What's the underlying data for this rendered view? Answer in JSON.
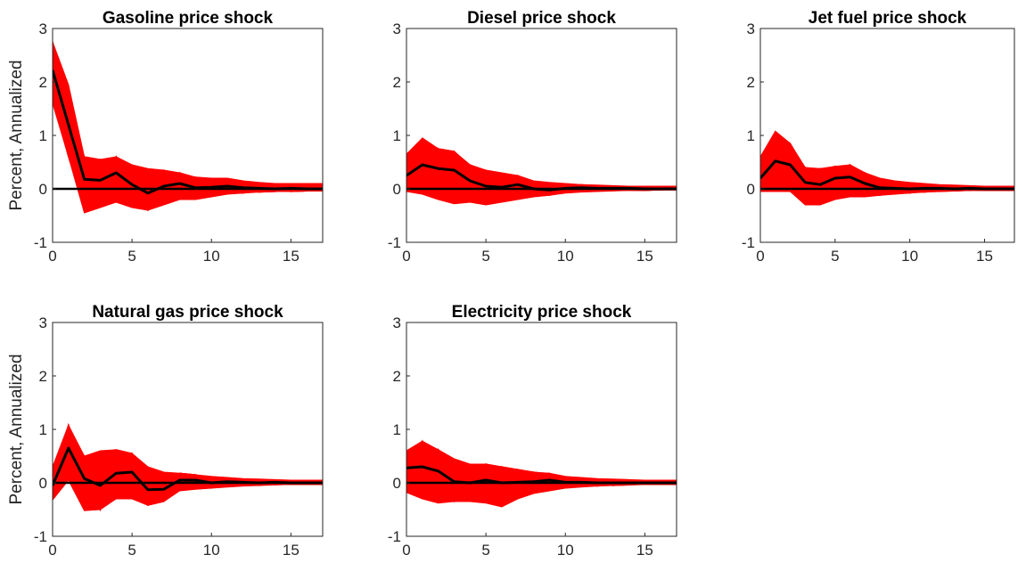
{
  "figure": {
    "ylabel": "Percent, Annualized",
    "colors": {
      "band": "#ff0000",
      "median": "#000000",
      "zero_line": "#000000",
      "axes": "#262626"
    }
  },
  "chart_data": [
    {
      "type": "line",
      "title": "Gasoline price shock",
      "ylabel": "Percent, Annualized",
      "xlim": [
        0,
        17
      ],
      "ylim": [
        -1,
        3
      ],
      "xticks": [
        0,
        5,
        10,
        15
      ],
      "yticks": [
        -1,
        0,
        1,
        2,
        3
      ],
      "grid": false,
      "x": [
        0,
        1,
        2,
        3,
        4,
        5,
        6,
        7,
        8,
        9,
        10,
        11,
        12,
        13,
        14,
        15,
        16,
        17
      ],
      "series": [
        {
          "role": "median",
          "values": [
            2.22,
            1.2,
            0.18,
            0.16,
            0.3,
            0.08,
            -0.08,
            0.05,
            0.1,
            0.02,
            0.03,
            0.05,
            0.02,
            0.01,
            0.0,
            0.01,
            0.0,
            0.0
          ]
        },
        {
          "role": "band_upper",
          "values": [
            2.75,
            1.95,
            0.6,
            0.55,
            0.6,
            0.45,
            0.38,
            0.35,
            0.3,
            0.22,
            0.2,
            0.2,
            0.15,
            0.12,
            0.1,
            0.1,
            0.1,
            0.1
          ]
        },
        {
          "role": "band_lower",
          "values": [
            1.6,
            0.6,
            -0.45,
            -0.35,
            -0.25,
            -0.35,
            -0.4,
            -0.3,
            -0.2,
            -0.2,
            -0.15,
            -0.1,
            -0.08,
            -0.06,
            -0.05,
            -0.05,
            -0.04,
            -0.04
          ]
        }
      ]
    },
    {
      "type": "line",
      "title": "Diesel price shock",
      "xlim": [
        0,
        17
      ],
      "ylim": [
        -1,
        3
      ],
      "xticks": [
        0,
        5,
        10,
        15
      ],
      "yticks": [
        -1,
        0,
        1,
        2,
        3
      ],
      "grid": false,
      "x": [
        0,
        1,
        2,
        3,
        4,
        5,
        6,
        7,
        8,
        9,
        10,
        11,
        12,
        13,
        14,
        15,
        16,
        17
      ],
      "series": [
        {
          "role": "median",
          "values": [
            0.25,
            0.45,
            0.38,
            0.35,
            0.15,
            0.05,
            0.03,
            0.08,
            0.0,
            -0.02,
            0.01,
            0.02,
            0.01,
            0.01,
            0.01,
            0.0,
            0.0,
            0.0
          ]
        },
        {
          "role": "band_upper",
          "values": [
            0.65,
            0.95,
            0.75,
            0.7,
            0.45,
            0.35,
            0.3,
            0.25,
            0.15,
            0.12,
            0.1,
            0.08,
            0.07,
            0.06,
            0.05,
            0.05,
            0.05,
            0.05
          ]
        },
        {
          "role": "band_lower",
          "values": [
            -0.05,
            -0.1,
            -0.2,
            -0.28,
            -0.25,
            -0.3,
            -0.25,
            -0.2,
            -0.15,
            -0.12,
            -0.08,
            -0.06,
            -0.05,
            -0.04,
            -0.03,
            -0.03,
            -0.02,
            -0.02
          ]
        }
      ]
    },
    {
      "type": "line",
      "title": "Jet fuel price shock",
      "xlim": [
        0,
        17
      ],
      "ylim": [
        -1,
        3
      ],
      "xticks": [
        0,
        5,
        10,
        15
      ],
      "yticks": [
        -1,
        0,
        1,
        2,
        3
      ],
      "grid": false,
      "x": [
        0,
        1,
        2,
        3,
        4,
        5,
        6,
        7,
        8,
        9,
        10,
        11,
        12,
        13,
        14,
        15,
        16,
        17
      ],
      "series": [
        {
          "role": "median",
          "values": [
            0.2,
            0.52,
            0.45,
            0.12,
            0.08,
            0.2,
            0.22,
            0.1,
            0.02,
            0.01,
            0.0,
            0.01,
            0.01,
            0.0,
            0.01,
            0.0,
            0.0,
            0.0
          ]
        },
        {
          "role": "band_upper",
          "values": [
            0.6,
            1.08,
            0.85,
            0.4,
            0.38,
            0.42,
            0.45,
            0.3,
            0.2,
            0.15,
            0.12,
            0.1,
            0.08,
            0.07,
            0.06,
            0.05,
            0.05,
            0.05
          ]
        },
        {
          "role": "band_lower",
          "values": [
            -0.05,
            -0.05,
            -0.05,
            -0.3,
            -0.3,
            -0.2,
            -0.15,
            -0.15,
            -0.12,
            -0.1,
            -0.08,
            -0.06,
            -0.05,
            -0.04,
            -0.03,
            -0.03,
            -0.03,
            -0.03
          ]
        }
      ]
    },
    {
      "type": "line",
      "title": "Natural gas price shock",
      "ylabel": "Percent, Annualized",
      "xlim": [
        0,
        17
      ],
      "ylim": [
        -1,
        3
      ],
      "xticks": [
        0,
        5,
        10,
        15
      ],
      "yticks": [
        -1,
        0,
        1,
        2,
        3
      ],
      "grid": false,
      "x": [
        0,
        1,
        2,
        3,
        4,
        5,
        6,
        7,
        8,
        9,
        10,
        11,
        12,
        13,
        14,
        15,
        16,
        17
      ],
      "series": [
        {
          "role": "median",
          "values": [
            -0.05,
            0.65,
            0.08,
            -0.05,
            0.18,
            0.2,
            -0.13,
            -0.12,
            0.05,
            0.05,
            0.0,
            0.02,
            0.01,
            0.0,
            0.01,
            0.0,
            0.0,
            0.0
          ]
        },
        {
          "role": "band_upper",
          "values": [
            0.3,
            1.08,
            0.5,
            0.6,
            0.62,
            0.55,
            0.3,
            0.2,
            0.18,
            0.15,
            0.12,
            0.1,
            0.08,
            0.07,
            0.06,
            0.05,
            0.05,
            0.05
          ]
        },
        {
          "role": "band_lower",
          "values": [
            -0.32,
            0.05,
            -0.52,
            -0.5,
            -0.3,
            -0.3,
            -0.42,
            -0.35,
            -0.15,
            -0.12,
            -0.1,
            -0.08,
            -0.06,
            -0.05,
            -0.04,
            -0.03,
            -0.03,
            -0.03
          ]
        }
      ]
    },
    {
      "type": "line",
      "title": "Electricity price shock",
      "xlim": [
        0,
        17
      ],
      "ylim": [
        -1,
        3
      ],
      "xticks": [
        0,
        5,
        10,
        15
      ],
      "yticks": [
        -1,
        0,
        1,
        2,
        3
      ],
      "grid": false,
      "x": [
        0,
        1,
        2,
        3,
        4,
        5,
        6,
        7,
        8,
        9,
        10,
        11,
        12,
        13,
        14,
        15,
        16,
        17
      ],
      "series": [
        {
          "role": "median",
          "values": [
            0.28,
            0.3,
            0.22,
            0.02,
            0.0,
            0.05,
            0.0,
            0.01,
            0.02,
            0.05,
            0.01,
            0.01,
            0.0,
            0.0,
            0.0,
            0.0,
            0.0,
            0.0
          ]
        },
        {
          "role": "band_upper",
          "values": [
            0.6,
            0.78,
            0.62,
            0.45,
            0.35,
            0.35,
            0.3,
            0.25,
            0.2,
            0.18,
            0.12,
            0.1,
            0.08,
            0.07,
            0.06,
            0.05,
            0.05,
            0.05
          ]
        },
        {
          "role": "band_lower",
          "values": [
            -0.18,
            -0.3,
            -0.38,
            -0.35,
            -0.35,
            -0.38,
            -0.45,
            -0.3,
            -0.2,
            -0.15,
            -0.1,
            -0.08,
            -0.06,
            -0.05,
            -0.04,
            -0.03,
            -0.03,
            -0.03
          ]
        }
      ]
    }
  ]
}
